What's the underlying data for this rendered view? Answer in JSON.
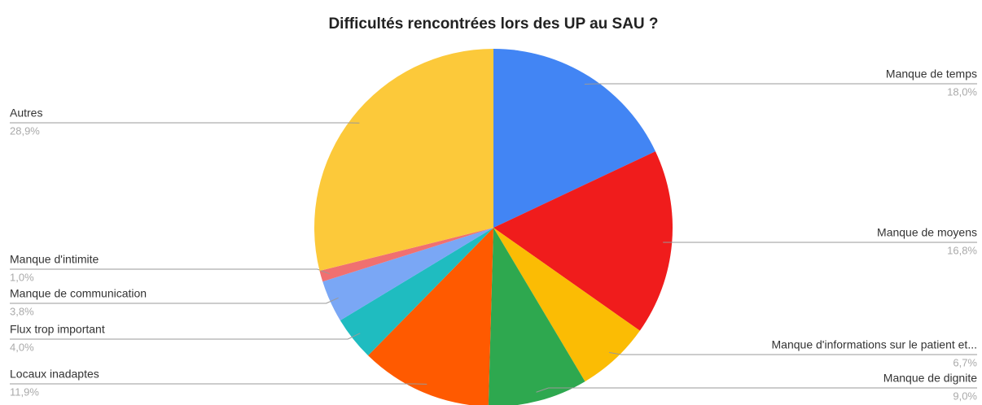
{
  "chart_data": {
    "type": "pie",
    "title": "Difficultés rencontrées lors des UP au SAU ?",
    "categories": [
      "Manque de temps",
      "Manque de moyens",
      "Manque d'informations sur le patient et...",
      "Manque de dignite",
      "Locaux inadaptes",
      "Flux trop important",
      "Manque de communication",
      "Manque d'intimite",
      "Autres"
    ],
    "values": [
      18.0,
      16.8,
      6.7,
      9.0,
      11.9,
      4.0,
      3.8,
      1.0,
      28.9
    ],
    "value_labels": [
      "18,0%",
      "16,8%",
      "6,7%",
      "9,0%",
      "11,9%",
      "4,0%",
      "3,8%",
      "1,0%",
      "28,9%"
    ],
    "colors": [
      "#4285f4",
      "#f01c1c",
      "#fbbc04",
      "#2ea84f",
      "#ff5a00",
      "#1fbcc0",
      "#7aa7f5",
      "#f07070",
      "#fcc93a"
    ]
  }
}
